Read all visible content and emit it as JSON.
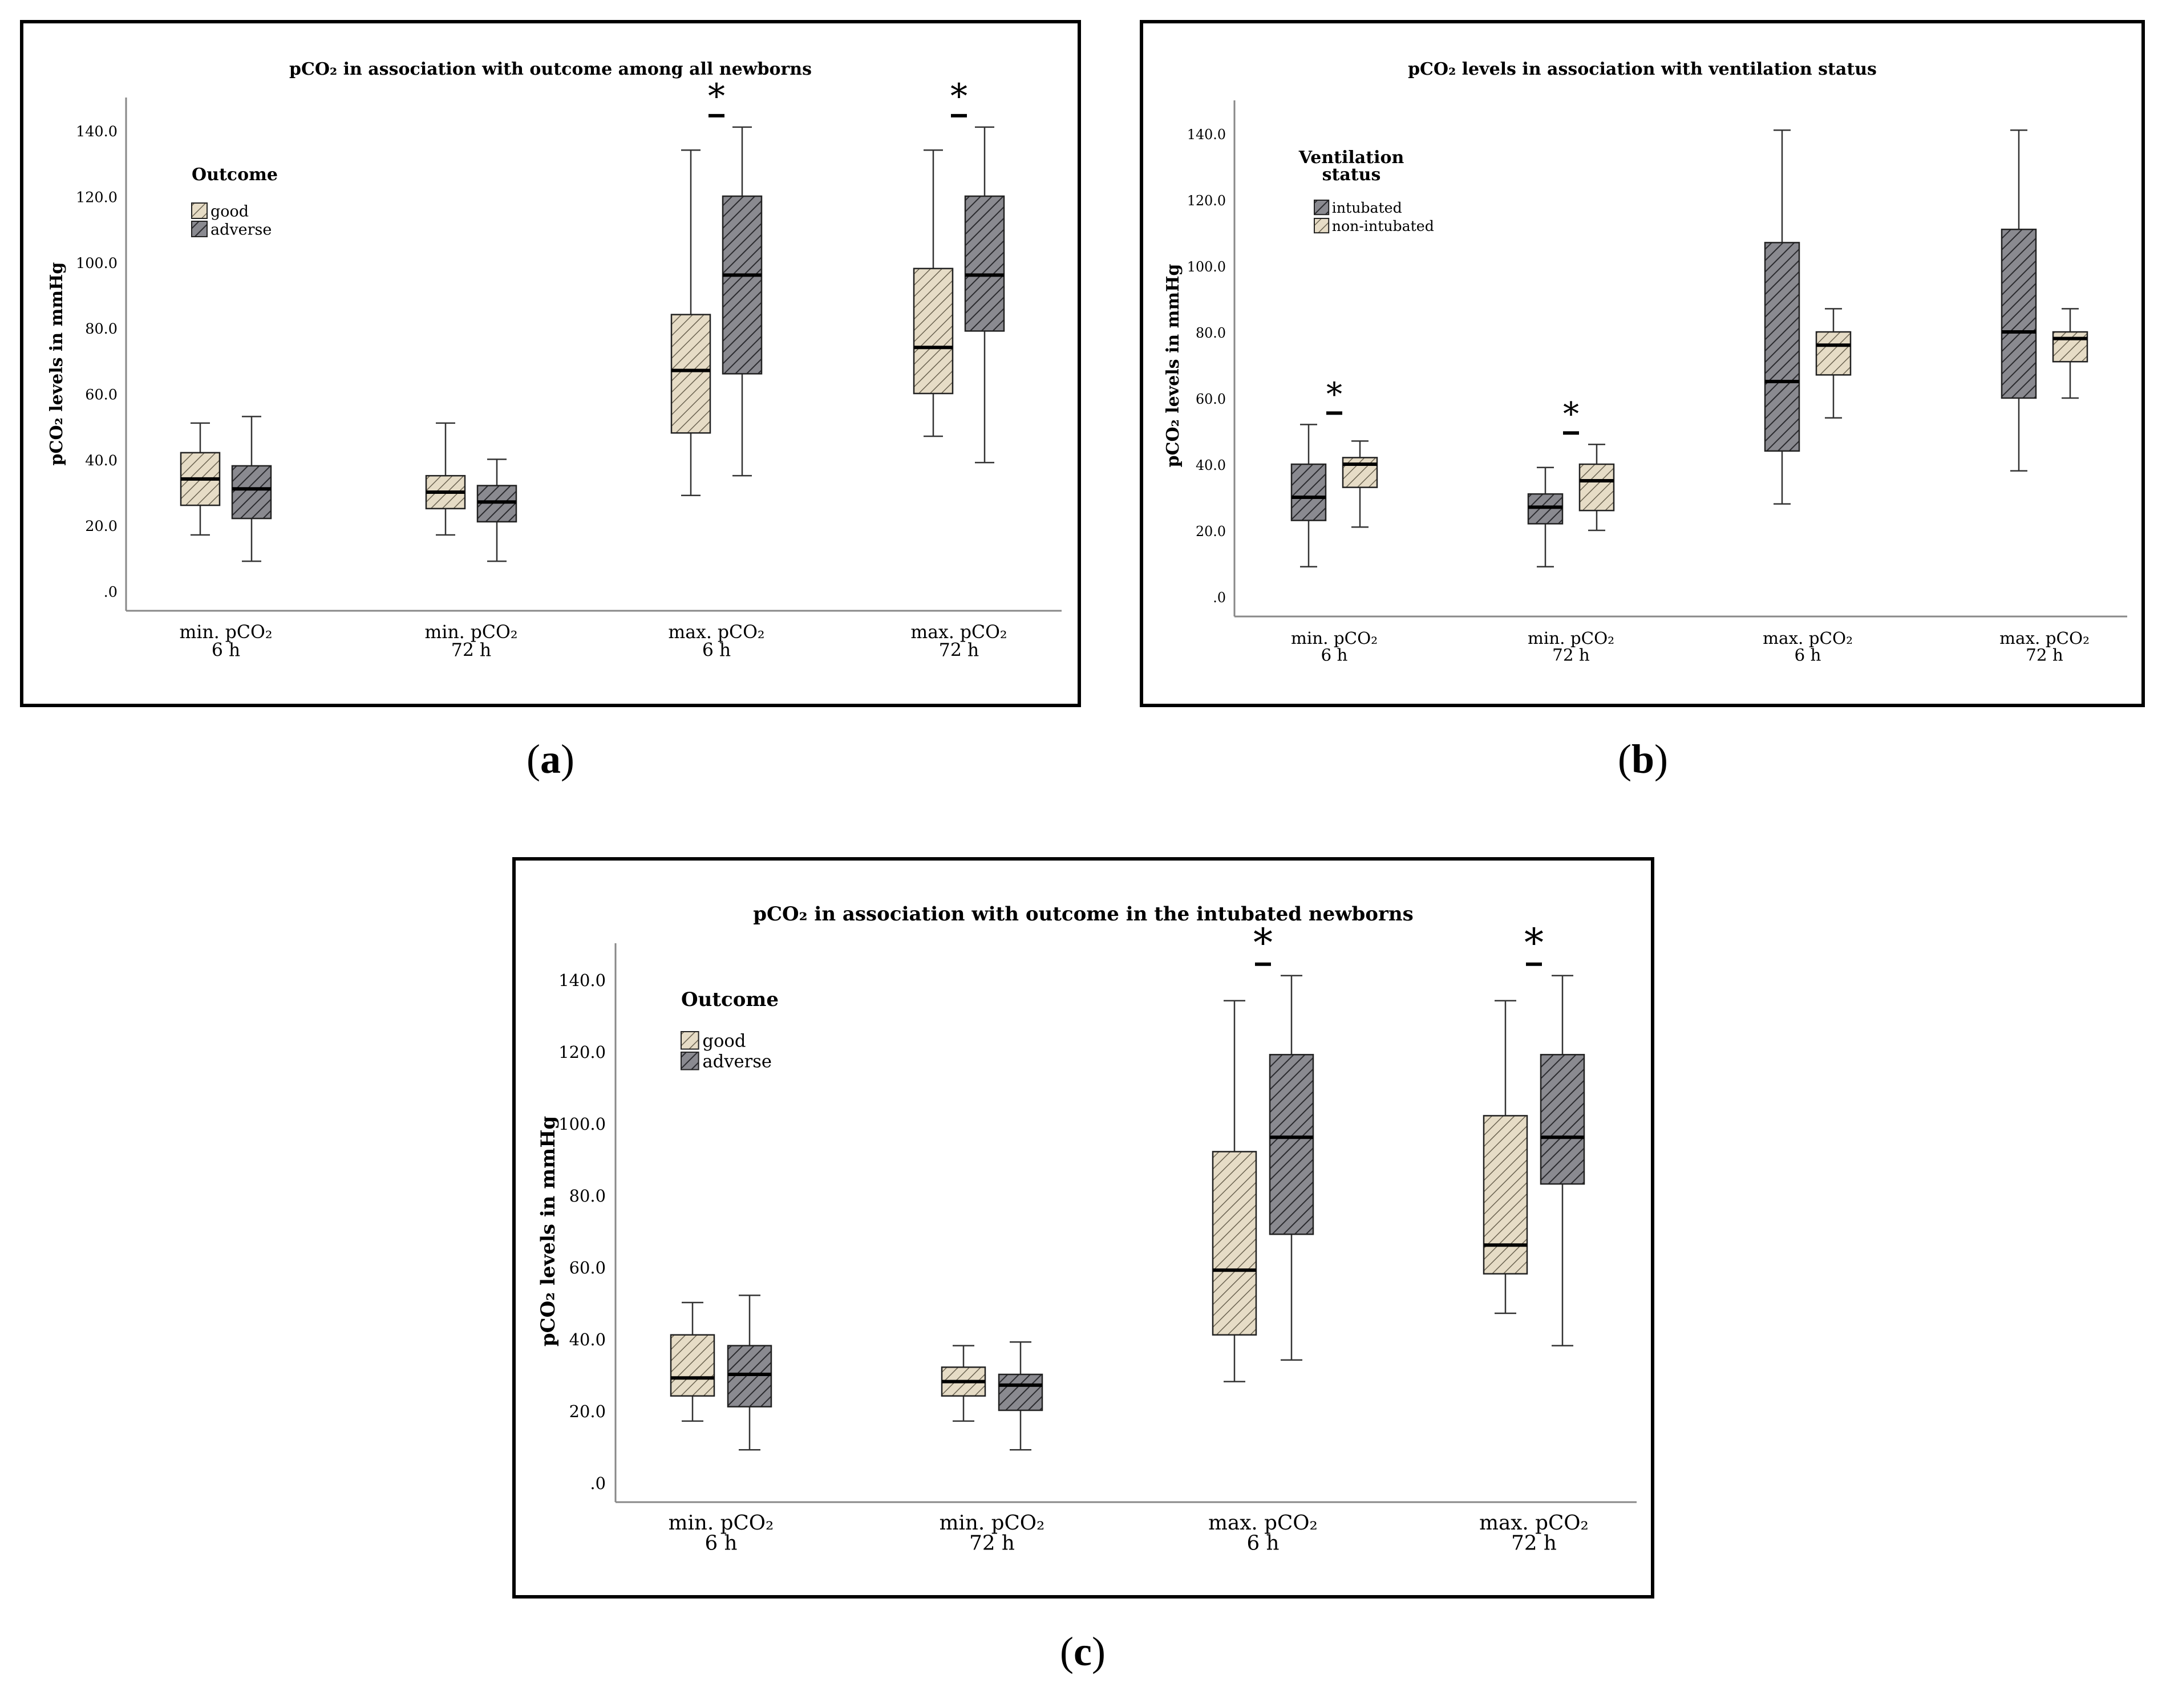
{
  "colors": {
    "good": "#e6dcc6",
    "adverse": "#8a8a90",
    "hatch_light": "#6a6250",
    "hatch_dark": "#2a2a2e"
  },
  "chart_data": [
    {
      "type": "boxplot",
      "panel_label": "a",
      "title": "pCO₂ in association with outcome among all newborns",
      "ylabel": "pCO₂ levels in mmHg",
      "ylim": [
        0,
        155
      ],
      "yticks": [
        ".0",
        "20.0",
        "40.0",
        "60.0",
        "80.0",
        "100.0",
        "120.0",
        "140.0"
      ],
      "legend_title": "Outcome",
      "legend_title_line2": "",
      "legend": [
        {
          "name": "good",
          "style": "good"
        },
        {
          "name": "adverse",
          "style": "adverse"
        }
      ],
      "categories": [
        {
          "line1": "min. pCO₂",
          "line2": "6 h"
        },
        {
          "line1": "min. pCO₂",
          "line2": "72 h"
        },
        {
          "line1": "max. pCO₂",
          "line2": "6 h"
        },
        {
          "line1": "max. pCO₂",
          "line2": "72 h"
        }
      ],
      "series": [
        {
          "name": "good",
          "style": "good",
          "boxes": [
            {
              "min": 17,
              "q1": 26,
              "median": 34,
              "q3": 42,
              "max": 51
            },
            {
              "min": 17,
              "q1": 25,
              "median": 30,
              "q3": 35,
              "max": 51
            },
            {
              "min": 29,
              "q1": 48,
              "median": 67,
              "q3": 84,
              "max": 134
            },
            {
              "min": 47,
              "q1": 60,
              "median": 74,
              "q3": 98,
              "max": 134
            }
          ]
        },
        {
          "name": "adverse",
          "style": "adverse",
          "boxes": [
            {
              "min": 9,
              "q1": 22,
              "median": 31,
              "q3": 38,
              "max": 53
            },
            {
              "min": 9,
              "q1": 21,
              "median": 27,
              "q3": 32,
              "max": 40
            },
            {
              "min": 35,
              "q1": 66,
              "median": 96,
              "q3": 120,
              "max": 141
            },
            {
              "min": 39,
              "q1": 79,
              "median": 96,
              "q3": 120,
              "max": 141
            }
          ]
        }
      ],
      "significance": [
        {
          "category_index": 2,
          "symbol": "*"
        },
        {
          "category_index": 3,
          "symbol": "*"
        }
      ]
    },
    {
      "type": "boxplot",
      "panel_label": "b",
      "title": "pCO₂ levels in association with ventilation status",
      "ylabel": "pCO₂ levels in mmHg",
      "ylim": [
        0,
        155
      ],
      "yticks": [
        ".0",
        "20.0",
        "40.0",
        "60.0",
        "80.0",
        "100.0",
        "120.0",
        "140.0"
      ],
      "legend_title": "Ventilation",
      "legend_title_line2": "status",
      "legend": [
        {
          "name": "intubated",
          "style": "adverse"
        },
        {
          "name": "non-intubated",
          "style": "good"
        }
      ],
      "categories": [
        {
          "line1": "min. pCO₂",
          "line2": "6 h"
        },
        {
          "line1": "min. pCO₂",
          "line2": "72 h"
        },
        {
          "line1": "max. pCO₂",
          "line2": "6 h"
        },
        {
          "line1": "max. pCO₂",
          "line2": "72 h"
        }
      ],
      "series": [
        {
          "name": "intubated",
          "style": "adverse",
          "boxes": [
            {
              "min": 9,
              "q1": 23,
              "median": 30,
              "q3": 40,
              "max": 52
            },
            {
              "min": 9,
              "q1": 22,
              "median": 27,
              "q3": 31,
              "max": 39
            },
            {
              "min": 28,
              "q1": 44,
              "median": 65,
              "q3": 107,
              "max": 141
            },
            {
              "min": 38,
              "q1": 60,
              "median": 80,
              "q3": 111,
              "max": 141
            }
          ]
        },
        {
          "name": "non-intubated",
          "style": "good",
          "boxes": [
            {
              "min": 21,
              "q1": 33,
              "median": 40,
              "q3": 42,
              "max": 47
            },
            {
              "min": 20,
              "q1": 26,
              "median": 35,
              "q3": 40,
              "max": 46
            },
            {
              "min": 54,
              "q1": 67,
              "median": 76,
              "q3": 80,
              "max": 87
            },
            {
              "min": 60,
              "q1": 71,
              "median": 78,
              "q3": 80,
              "max": 87
            }
          ]
        }
      ],
      "significance": [
        {
          "category_index": 0,
          "symbol": "*"
        },
        {
          "category_index": 1,
          "symbol": "*"
        }
      ]
    },
    {
      "type": "boxplot",
      "panel_label": "c",
      "title": "pCO₂ in association with outcome in the intubated newborns",
      "ylabel": "pCO₂ levels in mmHg",
      "ylim": [
        0,
        155
      ],
      "yticks": [
        ".0",
        "20.0",
        "40.0",
        "60.0",
        "80.0",
        "100.0",
        "120.0",
        "140.0"
      ],
      "legend_title": "Outcome",
      "legend_title_line2": "",
      "legend": [
        {
          "name": "good",
          "style": "good"
        },
        {
          "name": "adverse",
          "style": "adverse"
        }
      ],
      "categories": [
        {
          "line1": "min. pCO₂",
          "line2": "6 h"
        },
        {
          "line1": "min. pCO₂",
          "line2": "72 h"
        },
        {
          "line1": "max. pCO₂",
          "line2": "6 h"
        },
        {
          "line1": "max. pCO₂",
          "line2": "72 h"
        }
      ],
      "series": [
        {
          "name": "good",
          "style": "good",
          "boxes": [
            {
              "min": 17,
              "q1": 24,
              "median": 29,
              "q3": 41,
              "max": 50
            },
            {
              "min": 17,
              "q1": 24,
              "median": 28,
              "q3": 32,
              "max": 38
            },
            {
              "min": 28,
              "q1": 41,
              "median": 59,
              "q3": 92,
              "max": 134
            },
            {
              "min": 47,
              "q1": 58,
              "median": 66,
              "q3": 102,
              "max": 134
            }
          ]
        },
        {
          "name": "adverse",
          "style": "adverse",
          "boxes": [
            {
              "min": 9,
              "q1": 21,
              "median": 30,
              "q3": 38,
              "max": 52
            },
            {
              "min": 9,
              "q1": 20,
              "median": 27,
              "q3": 30,
              "max": 39
            },
            {
              "min": 34,
              "q1": 69,
              "median": 96,
              "q3": 119,
              "max": 141
            },
            {
              "min": 38,
              "q1": 83,
              "median": 96,
              "q3": 119,
              "max": 141
            }
          ]
        }
      ],
      "significance": [
        {
          "category_index": 2,
          "symbol": "*"
        },
        {
          "category_index": 3,
          "symbol": "*"
        }
      ]
    }
  ]
}
